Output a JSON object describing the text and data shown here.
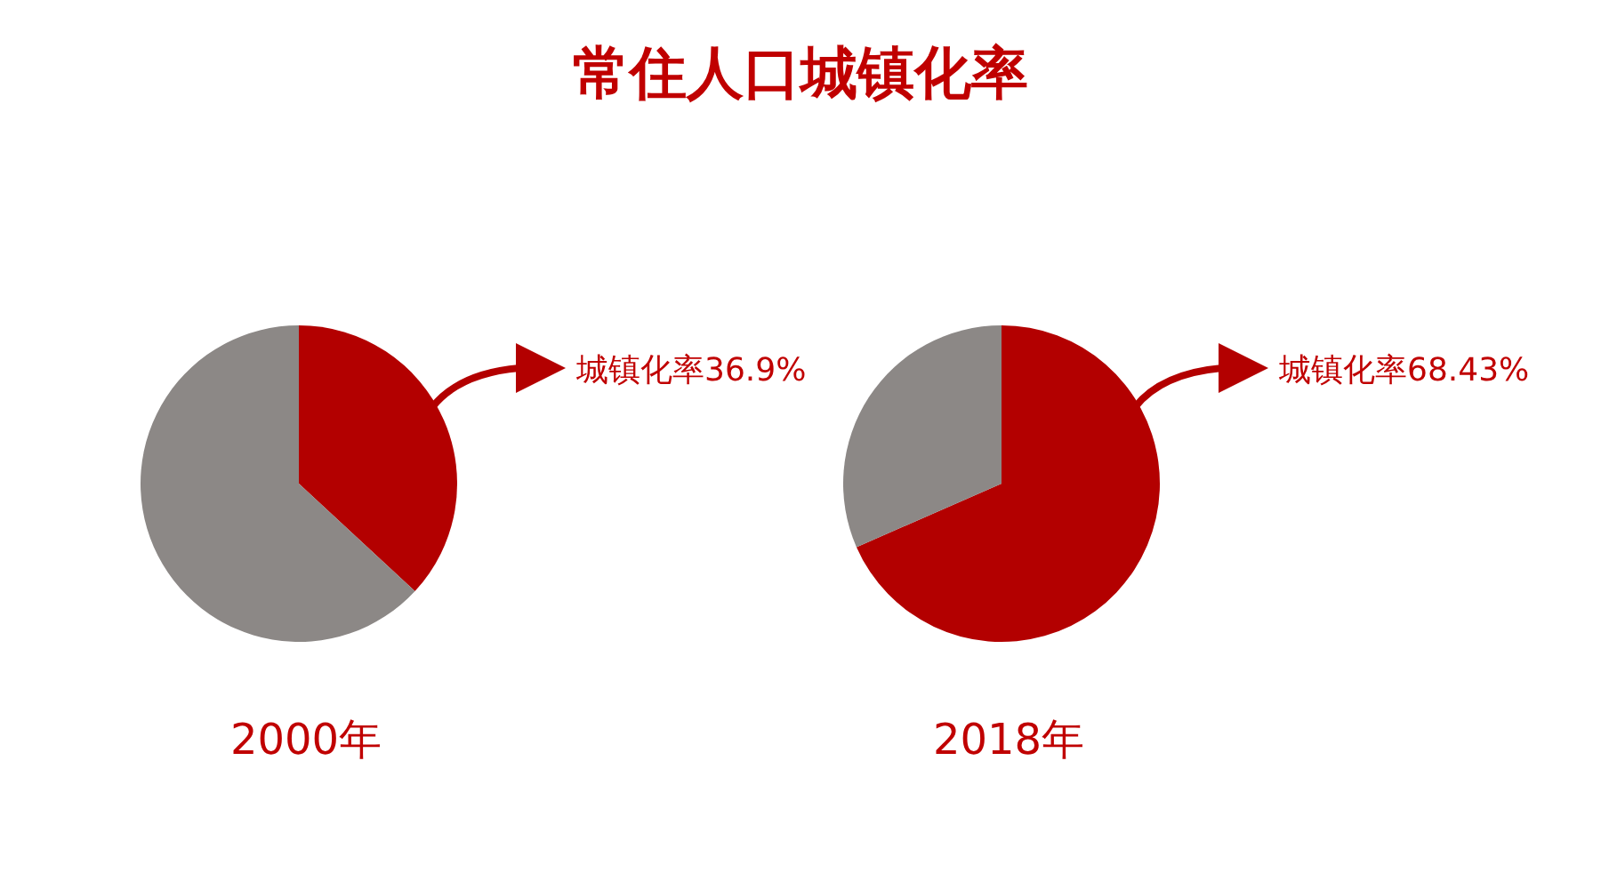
{
  "chart_data": [
    {
      "type": "pie",
      "title": "常住人口城镇化率",
      "categories": [
        null,
        null
      ],
      "values": [
        36.9,
        63.1
      ],
      "colors": [
        "#b30000",
        "#8c8886"
      ],
      "annotations": [
        "城镇化率36.9%"
      ],
      "xlabel": "2000年"
    },
    {
      "type": "pie",
      "categories": [
        null,
        null
      ],
      "values": [
        68.43,
        31.57
      ],
      "colors": [
        "#b30000",
        "#8c8886"
      ],
      "annotations": [
        "城镇化率68.43%"
      ],
      "xlabel": "2018年"
    }
  ]
}
